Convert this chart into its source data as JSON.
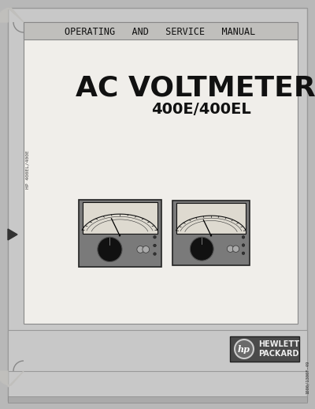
{
  "bg_color": "#b8b8b8",
  "outer_bg": "#c8c8c8",
  "inner_bg": "#f0eeea",
  "header_band_color": "#c0bfbc",
  "title_text": "AC VOLTMETER",
  "subtitle_text": "400E/400EL",
  "header_text": "OPERATING   AND   SERVICE   MANUAL",
  "side_label_left": "HP 400EL/400E",
  "side_label_right": "1000/1300F-49",
  "hp_logo_text": "hp",
  "brand_line1": "HEWLETT",
  "brand_line2": "PACKARD",
  "title_fontsize": 26,
  "subtitle_fontsize": 14,
  "header_fontsize": 8.5,
  "text_color": "#111111",
  "border_color": "#555555",
  "light_border": "#999999"
}
